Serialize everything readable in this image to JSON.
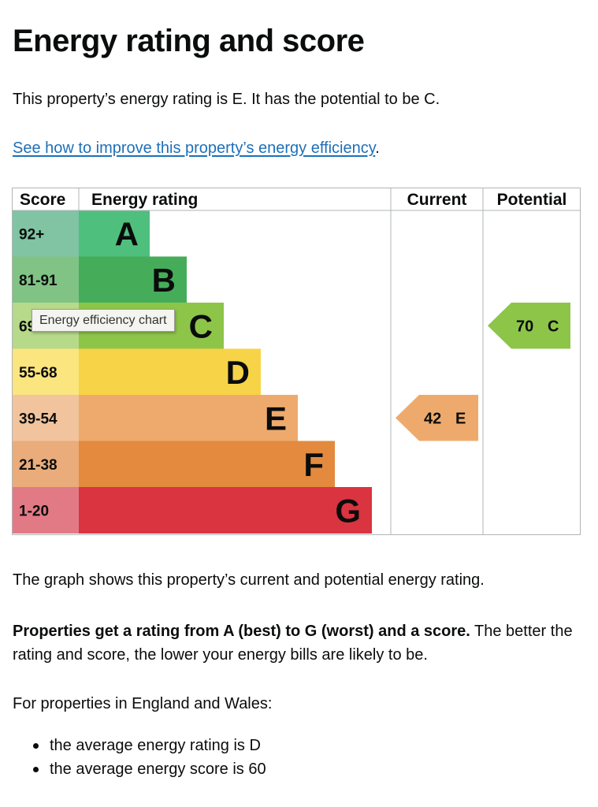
{
  "page": {
    "title": "Energy rating and score",
    "summary": "This property’s energy rating is E. It has the potential to be C.",
    "improve_link": "See how to improve this property’s energy efficiency",
    "improve_suffix": ".",
    "graph_description": "The graph shows this property’s current and potential energy rating.",
    "explainer_bold": "Properties get a rating from A (best) to G (worst) and a score.",
    "explainer_rest": " The better the rating and score, the lower your energy bills are likely to be.",
    "region_intro": "For properties in England and Wales:",
    "averages": [
      "the average energy rating is D",
      "the average energy score is 60"
    ]
  },
  "tooltip": "Energy efficiency chart",
  "chart_data": {
    "type": "table",
    "columns": [
      "Score",
      "Energy rating",
      "Current",
      "Potential"
    ],
    "bands": [
      {
        "letter": "A",
        "range": "92+",
        "color": "#4fbf7e",
        "score_color": "#80c4a3"
      },
      {
        "letter": "B",
        "range": "81-91",
        "color": "#45ad5a",
        "score_color": "#80c385"
      },
      {
        "letter": "C",
        "range": "69-80",
        "color": "#8dc549",
        "score_color": "#b6d98a"
      },
      {
        "letter": "D",
        "range": "55-68",
        "color": "#f7d347",
        "score_color": "#fae57e"
      },
      {
        "letter": "E",
        "range": "39-54",
        "color": "#eeaa6d",
        "score_color": "#f2c49d"
      },
      {
        "letter": "F",
        "range": "21-38",
        "color": "#e38a3e",
        "score_color": "#e9ac7a"
      },
      {
        "letter": "G",
        "range": "1-20",
        "color": "#d9343f",
        "score_color": "#e27a86"
      }
    ],
    "current": {
      "score": 42,
      "letter": "E",
      "color": "#eeaa6d"
    },
    "potential": {
      "score": 70,
      "letter": "C",
      "color": "#8dc549"
    }
  }
}
